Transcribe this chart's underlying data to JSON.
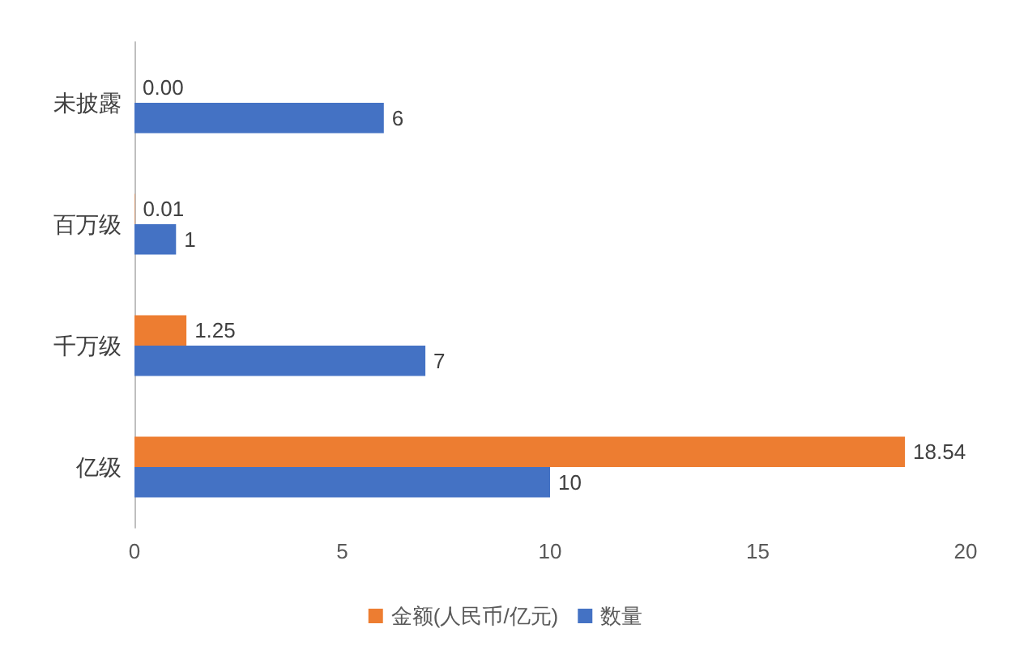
{
  "chart_data": {
    "type": "bar",
    "orientation": "horizontal",
    "categories": [
      "未披露",
      "百万级",
      "千万级",
      "亿级"
    ],
    "series": [
      {
        "name": "金额(人民币/亿元)",
        "color": "#ed7d31",
        "values": [
          0.0,
          0.01,
          1.25,
          18.54
        ],
        "value_labels": [
          "0.00",
          "0.01",
          "1.25",
          "18.54"
        ]
      },
      {
        "name": "数量",
        "color": "#4472c4",
        "values": [
          6,
          1,
          7,
          10
        ],
        "value_labels": [
          "6",
          "1",
          "7",
          "10"
        ]
      }
    ],
    "xlim": [
      0,
      20
    ],
    "xticks": [
      0,
      5,
      10,
      15,
      20
    ],
    "grid": false,
    "legend": "bottom"
  }
}
